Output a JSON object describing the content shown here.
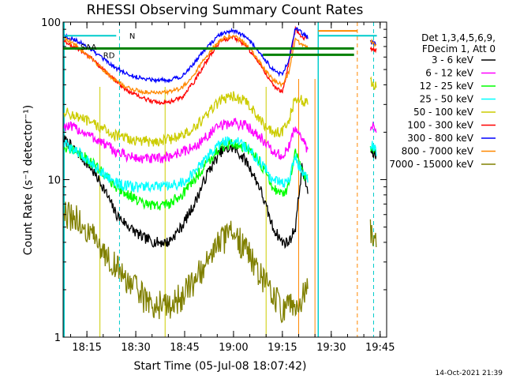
{
  "chart_data": {
    "type": "line",
    "title": "RHESSI Observing Summary Count Rates",
    "xlabel": "Start Time (05-Jul-08 18:07:42)",
    "ylabel": "Count Rate (s⁻¹ detector⁻¹)",
    "yscale": "log",
    "ylim": [
      1,
      100
    ],
    "xlim_minutes": [
      18.13,
      19.47
    ],
    "x_ticks": [
      "18:15",
      "18:30",
      "18:45",
      "19:00",
      "19:15",
      "19:30",
      "19:45"
    ],
    "y_ticks": [
      "1",
      "10",
      "100"
    ],
    "legend": {
      "placement": "right",
      "header": [
        "Det 1,3,4,5,6,9,",
        "FDecim 1, Att 0"
      ],
      "entries": [
        {
          "label": "3 - 6 keV",
          "color": "#000000"
        },
        {
          "label": "6 - 12 keV",
          "color": "#ff00ff"
        },
        {
          "label": "12 - 25 keV",
          "color": "#00ff00"
        },
        {
          "label": "25 - 50 keV",
          "color": "#00ffff"
        },
        {
          "label": "50 - 100 keV",
          "color": "#cccc00"
        },
        {
          "label": "100 - 300 keV",
          "color": "#ff0000"
        },
        {
          "label": "300 - 800 keV",
          "color": "#0000ff"
        },
        {
          "label": "800 - 7000 keV",
          "color": "#ff8800"
        },
        {
          "label": "7000 - 15000 keV",
          "color": "#808000"
        }
      ]
    },
    "annotations": [
      {
        "text": "N",
        "color": "#00cccc"
      },
      {
        "text": "SAA",
        "color": "#808000"
      },
      {
        "text": "RD",
        "color": "#008000"
      }
    ],
    "series": [
      {
        "name": "3 - 6 keV",
        "color": "#000000",
        "x": [
          "18:08",
          "18:12",
          "18:16",
          "18:20",
          "18:24",
          "18:28",
          "18:32",
          "18:36",
          "18:40",
          "18:44",
          "18:48",
          "18:52",
          "18:56",
          "19:00",
          "19:04",
          "19:08",
          "19:12",
          "19:15",
          "19:17",
          "19:19",
          "19:21",
          "19:23",
          "19:42",
          "19:44"
        ],
        "y": [
          18,
          15,
          12,
          9,
          6,
          5,
          4.3,
          4,
          4,
          5,
          7,
          11,
          15,
          16,
          13,
          9,
          5,
          4,
          4,
          5,
          12,
          8,
          15,
          14
        ]
      },
      {
        "name": "6 - 12 keV",
        "color": "#ff00ff",
        "x": [
          "18:08",
          "18:12",
          "18:16",
          "18:20",
          "18:24",
          "18:28",
          "18:32",
          "18:36",
          "18:40",
          "18:44",
          "18:48",
          "18:52",
          "18:56",
          "19:00",
          "19:04",
          "19:08",
          "19:12",
          "19:15",
          "19:17",
          "19:19",
          "19:21",
          "19:23",
          "19:42",
          "19:44"
        ],
        "y": [
          22,
          21,
          19,
          17,
          15,
          14,
          13.5,
          13.5,
          14,
          15,
          16,
          19,
          22,
          23,
          22,
          19,
          15,
          14,
          16,
          22,
          18,
          15,
          22,
          21
        ]
      },
      {
        "name": "12 - 25 keV",
        "color": "#00ff00",
        "x": [
          "18:08",
          "18:12",
          "18:16",
          "18:20",
          "18:24",
          "18:28",
          "18:32",
          "18:36",
          "18:40",
          "18:44",
          "18:48",
          "18:52",
          "18:56",
          "19:00",
          "19:04",
          "19:08",
          "19:12",
          "19:15",
          "19:17",
          "19:19",
          "19:21",
          "19:23",
          "19:42",
          "19:44"
        ],
        "y": [
          16,
          15,
          13,
          11,
          9,
          8,
          7,
          6.8,
          7,
          8,
          10,
          13,
          16,
          17,
          16,
          13,
          9,
          8,
          9,
          15,
          11,
          10,
          16,
          15
        ]
      },
      {
        "name": "25 - 50 keV",
        "color": "#00ffff",
        "x": [
          "18:08",
          "18:12",
          "18:16",
          "18:20",
          "18:24",
          "18:28",
          "18:32",
          "18:36",
          "18:40",
          "18:44",
          "18:48",
          "18:52",
          "18:56",
          "19:00",
          "19:04",
          "19:08",
          "19:12",
          "19:15",
          "19:17",
          "19:19",
          "19:21",
          "19:23",
          "19:42",
          "19:44"
        ],
        "y": [
          17,
          15,
          13,
          11,
          9.5,
          9,
          9,
          9,
          9,
          9.5,
          11,
          14,
          17,
          18,
          16,
          13,
          10,
          9.5,
          10,
          14,
          11,
          10,
          17,
          15
        ]
      },
      {
        "name": "50 - 100 keV",
        "color": "#cccc00",
        "x": [
          "18:08",
          "18:12",
          "18:16",
          "18:20",
          "18:24",
          "18:28",
          "18:32",
          "18:36",
          "18:40",
          "18:44",
          "18:48",
          "18:52",
          "18:56",
          "19:00",
          "19:04",
          "19:08",
          "19:12",
          "19:15",
          "19:17",
          "19:19",
          "19:21",
          "19:23",
          "19:42",
          "19:44"
        ],
        "y": [
          27,
          25,
          23,
          21,
          19,
          18,
          17.5,
          17.5,
          18,
          19,
          21,
          26,
          32,
          34,
          31,
          24,
          20,
          20,
          24,
          33,
          32,
          30,
          42,
          38
        ]
      },
      {
        "name": "100 - 300 keV",
        "color": "#ff0000",
        "x": [
          "18:08",
          "18:12",
          "18:16",
          "18:20",
          "18:24",
          "18:28",
          "18:32",
          "18:36",
          "18:40",
          "18:44",
          "18:48",
          "18:52",
          "18:56",
          "19:00",
          "19:04",
          "19:08",
          "19:12",
          "19:15",
          "19:17",
          "19:19",
          "19:21",
          "19:23",
          "19:42",
          "19:44"
        ],
        "y": [
          75,
          68,
          60,
          50,
          42,
          36,
          33,
          31,
          31,
          33,
          42,
          58,
          76,
          80,
          70,
          55,
          40,
          36,
          55,
          90,
          80,
          78,
          68,
          66
        ]
      },
      {
        "name": "300 - 800 keV",
        "color": "#0000ff",
        "x": [
          "18:08",
          "18:12",
          "18:16",
          "18:20",
          "18:24",
          "18:28",
          "18:32",
          "18:36",
          "18:40",
          "18:44",
          "18:48",
          "18:52",
          "18:56",
          "19:00",
          "19:04",
          "19:08",
          "19:12",
          "19:15",
          "19:17",
          "19:19",
          "19:21",
          "19:23",
          "19:42",
          "19:44"
        ],
        "y": [
          82,
          76,
          68,
          58,
          51,
          46,
          44,
          43,
          43,
          45,
          55,
          70,
          84,
          88,
          80,
          64,
          50,
          46,
          58,
          92,
          85,
          80,
          75,
          72
        ]
      },
      {
        "name": "800 - 7000 keV",
        "color": "#ff8800",
        "x": [
          "18:08",
          "18:12",
          "18:16",
          "18:20",
          "18:24",
          "18:28",
          "18:32",
          "18:36",
          "18:40",
          "18:44",
          "18:48",
          "18:52",
          "18:56",
          "19:00",
          "19:04",
          "19:08",
          "19:12",
          "19:15",
          "19:17",
          "19:19",
          "19:21",
          "19:23",
          "19:42",
          "19:44"
        ],
        "y": [
          80,
          70,
          60,
          50,
          42,
          38,
          36,
          36,
          36,
          38,
          47,
          62,
          78,
          82,
          72,
          56,
          43,
          40,
          48,
          78,
          72,
          68,
          76,
          70
        ]
      },
      {
        "name": "7000 - 15000 keV",
        "color": "#808000",
        "x": [
          "18:08",
          "18:12",
          "18:16",
          "18:20",
          "18:24",
          "18:28",
          "18:32",
          "18:36",
          "18:40",
          "18:44",
          "18:48",
          "18:52",
          "18:56",
          "19:00",
          "19:04",
          "19:08",
          "19:12",
          "19:15",
          "19:17",
          "19:19",
          "19:21",
          "19:23",
          "19:42",
          "19:44"
        ],
        "y": [
          6,
          5.5,
          4.5,
          3.5,
          2.8,
          2.2,
          1.8,
          1.6,
          1.6,
          1.8,
          2.3,
          3,
          4,
          4.5,
          3.5,
          2.5,
          1.8,
          1.5,
          1.5,
          1.7,
          1.8,
          2,
          4.5,
          4
        ]
      }
    ]
  },
  "footer": {
    "timestamp": "14-Oct-2021 21:39"
  }
}
